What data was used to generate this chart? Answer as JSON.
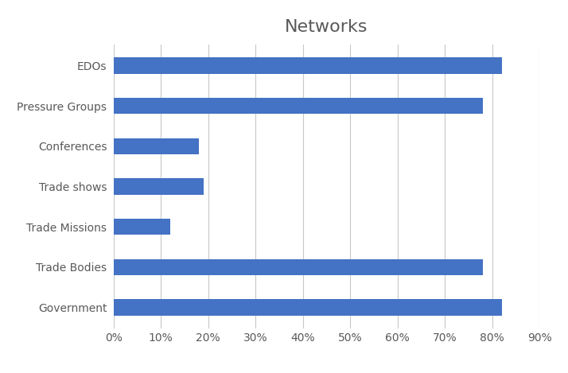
{
  "title": "Networks",
  "categories": [
    "EDOs",
    "Pressure Groups",
    "Conferences",
    "Trade shows",
    "Trade Missions",
    "Trade Bodies",
    "Government"
  ],
  "values": [
    0.82,
    0.78,
    0.18,
    0.19,
    0.12,
    0.78,
    0.82
  ],
  "bar_color": "#4472C4",
  "xlim": [
    0,
    0.9
  ],
  "xtick_values": [
    0.0,
    0.1,
    0.2,
    0.3,
    0.4,
    0.5,
    0.6,
    0.7,
    0.8,
    0.9
  ],
  "title_fontsize": 16,
  "title_color": "#595959",
  "label_color": "#595959",
  "label_fontsize": 10,
  "tick_fontsize": 10,
  "background_color": "#ffffff",
  "grid_color": "#c8c8c8",
  "bar_height": 0.4
}
